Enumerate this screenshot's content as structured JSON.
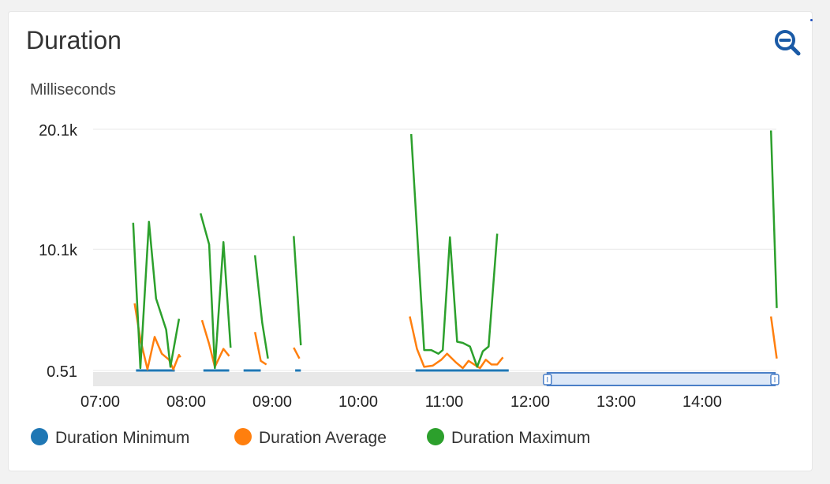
{
  "widget": {
    "title": "Duration",
    "zoom_icon": "zoom-out-magnifier-icon"
  },
  "colors": {
    "minimum": "#1f77b4",
    "average": "#ff7f0e",
    "maximum": "#2ca02c",
    "grid": "#e8e8e8",
    "navigator_fill": "#dde8f7",
    "navigator_stroke": "#4a7fc7",
    "zoom_icon": "#1a5aa6"
  },
  "chart_data": {
    "type": "line",
    "title": "",
    "ylabel": "Milliseconds",
    "y_ticks": [
      {
        "value": 0.51,
        "label": "0.51"
      },
      {
        "value": 10100,
        "label": "10.1k"
      },
      {
        "value": 20100,
        "label": "20.1k"
      }
    ],
    "ylim": [
      0.51,
      20100
    ],
    "x_ticks": [
      "07:00",
      "08:00",
      "09:00",
      "10:00",
      "11:00",
      "12:00",
      "13:00",
      "14:00"
    ],
    "xlim": [
      "06:48",
      "14:53"
    ],
    "grid": true,
    "legend_position": "bottom-left",
    "navigator_range": [
      "12:12",
      "14:53"
    ],
    "series": [
      {
        "name": "Duration Minimum",
        "color_key": "minimum",
        "segments": [
          [
            [
              "07:25",
              0.51
            ],
            [
              "07:52",
              0.51
            ]
          ],
          [
            [
              "08:12",
              0.51
            ],
            [
              "08:30",
              0.51
            ]
          ],
          [
            [
              "08:40",
              0.51
            ],
            [
              "08:52",
              0.51
            ]
          ],
          [
            [
              "09:16",
              0.51
            ],
            [
              "09:20",
              0.51
            ]
          ],
          [
            [
              "10:40",
              0.51
            ],
            [
              "11:45",
              0.51
            ]
          ]
        ]
      },
      {
        "name": "Duration Average",
        "color_key": "average",
        "segments": [
          [
            [
              "07:24",
              5600
            ],
            [
              "07:28",
              2600
            ],
            [
              "07:33",
              100
            ],
            [
              "07:38",
              2800
            ],
            [
              "07:43",
              1400
            ],
            [
              "07:48",
              900
            ],
            [
              "07:51",
              100
            ],
            [
              "07:55",
              1300
            ],
            [
              "07:56",
              1100
            ]
          ],
          [
            [
              "08:11",
              4200
            ],
            [
              "08:16",
              2200
            ],
            [
              "08:20",
              300
            ],
            [
              "08:26",
              1800
            ],
            [
              "08:30",
              1200
            ]
          ],
          [
            [
              "08:48",
              3200
            ],
            [
              "08:52",
              800
            ],
            [
              "08:56",
              500
            ]
          ],
          [
            [
              "09:15",
              1900
            ],
            [
              "09:19",
              1000
            ]
          ],
          [
            [
              "10:36",
              4500
            ],
            [
              "10:41",
              1800
            ],
            [
              "10:46",
              300
            ],
            [
              "10:52",
              400
            ],
            [
              "10:58",
              900
            ],
            [
              "11:02",
              1400
            ],
            [
              "11:08",
              700
            ],
            [
              "11:13",
              200
            ],
            [
              "11:17",
              800
            ],
            [
              "11:21",
              500
            ],
            [
              "11:25",
              200
            ],
            [
              "11:29",
              900
            ],
            [
              "11:33",
              500
            ],
            [
              "11:37",
              500
            ],
            [
              "11:41",
              1100
            ]
          ],
          [
            [
              "14:48",
              4500
            ],
            [
              "14:52",
              1000
            ]
          ]
        ]
      },
      {
        "name": "Duration Maximum",
        "color_key": "maximum",
        "segments": [
          [
            [
              "07:23",
              12300
            ],
            [
              "07:28",
              200
            ],
            [
              "07:34",
              12400
            ],
            [
              "07:39",
              6000
            ],
            [
              "07:46",
              3400
            ],
            [
              "07:49",
              300
            ],
            [
              "07:55",
              4300
            ]
          ],
          [
            [
              "08:10",
              13100
            ],
            [
              "08:16",
              10500
            ],
            [
              "08:20",
              200
            ],
            [
              "08:26",
              10700
            ],
            [
              "08:31",
              1900
            ]
          ],
          [
            [
              "08:48",
              9600
            ],
            [
              "08:53",
              4000
            ],
            [
              "08:57",
              1000
            ]
          ],
          [
            [
              "09:15",
              11200
            ],
            [
              "09:20",
              2100
            ]
          ],
          [
            [
              "10:37",
              19700
            ],
            [
              "10:46",
              1700
            ],
            [
              "10:51",
              1700
            ],
            [
              "10:56",
              1400
            ],
            [
              "10:59",
              1700
            ],
            [
              "11:04",
              11100
            ],
            [
              "11:09",
              2400
            ],
            [
              "11:13",
              2300
            ],
            [
              "11:18",
              2000
            ],
            [
              "11:23",
              300
            ],
            [
              "11:27",
              1600
            ],
            [
              "11:31",
              2000
            ],
            [
              "11:37",
              11400
            ]
          ],
          [
            [
              "14:48",
              20000
            ],
            [
              "14:52",
              5200
            ]
          ]
        ]
      }
    ]
  }
}
